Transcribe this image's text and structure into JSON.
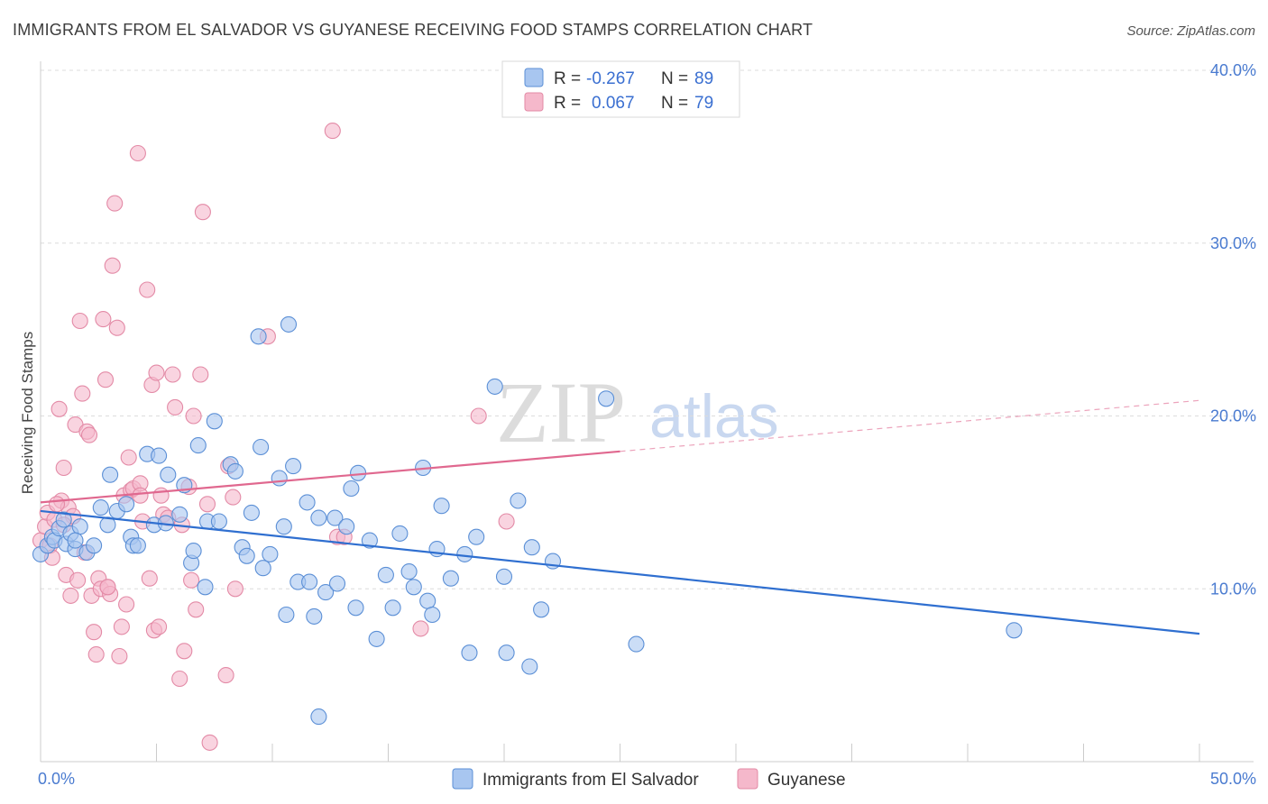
{
  "header": {
    "title": "IMMIGRANTS FROM EL SALVADOR VS GUYANESE RECEIVING FOOD STAMPS CORRELATION CHART",
    "source": "Source: ZipAtlas.com"
  },
  "watermark": {
    "zip": "ZIP",
    "atlas": "atlas"
  },
  "legend_top": {
    "rows": [
      {
        "r_label": "R =",
        "r_value": "-0.267",
        "n_label": "N =",
        "n_value": "89"
      },
      {
        "r_label": "R =",
        "r_value": "0.067",
        "n_label": "N =",
        "n_value": "79"
      }
    ]
  },
  "legend_bottom": {
    "items": [
      "Immigrants from El Salvador",
      "Guyanese"
    ]
  },
  "colors": {
    "blue_fill": "#a8c6f0",
    "blue_stroke": "#5b8fd6",
    "blue_line": "#2f6fd0",
    "pink_fill": "#f5b8cb",
    "pink_stroke": "#e38aa6",
    "pink_line": "#e0688f",
    "tick_text": "#4a7bd0",
    "grid": "#dcdcdc"
  },
  "chart_data": {
    "type": "scatter",
    "title": "IMMIGRANTS FROM EL SALVADOR VS GUYANESE RECEIVING FOOD STAMPS CORRELATION CHART",
    "xlabel": "",
    "ylabel": "Receiving Food Stamps",
    "xlim": [
      0,
      50
    ],
    "ylim": [
      0,
      40
    ],
    "x_tick_labels": [
      "0.0%",
      "50.0%"
    ],
    "y_ticks": [
      10,
      20,
      30,
      40
    ],
    "y_tick_labels": [
      "10.0%",
      "20.0%",
      "30.0%",
      "40.0%"
    ],
    "grid": true,
    "legend_position": "top-center",
    "series": [
      {
        "name": "Immigrants from El Salvador",
        "color": "#a8c6f0",
        "trend": {
          "x0": 0,
          "y0": 14.5,
          "x1": 50,
          "y1": 7.4,
          "dashed_from": null
        },
        "points": [
          [
            0.0,
            12.0
          ],
          [
            0.3,
            12.5
          ],
          [
            0.5,
            13.0
          ],
          [
            0.6,
            12.8
          ],
          [
            0.8,
            13.5
          ],
          [
            1.0,
            14.0
          ],
          [
            1.1,
            12.6
          ],
          [
            1.3,
            13.2
          ],
          [
            1.5,
            12.3
          ],
          [
            1.7,
            13.6
          ],
          [
            2.0,
            12.1
          ],
          [
            2.3,
            12.5
          ],
          [
            2.6,
            14.7
          ],
          [
            2.9,
            13.7
          ],
          [
            3.0,
            16.6
          ],
          [
            3.3,
            14.5
          ],
          [
            3.7,
            14.9
          ],
          [
            3.9,
            13.0
          ],
          [
            4.0,
            12.5
          ],
          [
            4.2,
            12.5
          ],
          [
            4.6,
            17.8
          ],
          [
            4.9,
            13.7
          ],
          [
            5.1,
            17.7
          ],
          [
            5.4,
            13.8
          ],
          [
            5.5,
            16.6
          ],
          [
            6.0,
            14.3
          ],
          [
            6.2,
            16.0
          ],
          [
            6.5,
            11.5
          ],
          [
            6.6,
            12.2
          ],
          [
            7.1,
            10.1
          ],
          [
            7.2,
            13.9
          ],
          [
            6.8,
            18.3
          ],
          [
            7.5,
            19.7
          ],
          [
            7.7,
            13.9
          ],
          [
            8.2,
            17.2
          ],
          [
            8.4,
            16.8
          ],
          [
            8.7,
            12.4
          ],
          [
            8.9,
            11.9
          ],
          [
            9.1,
            14.4
          ],
          [
            9.4,
            24.6
          ],
          [
            9.6,
            11.2
          ],
          [
            9.9,
            12.0
          ],
          [
            9.5,
            18.2
          ],
          [
            10.3,
            16.4
          ],
          [
            10.5,
            13.6
          ],
          [
            10.9,
            17.1
          ],
          [
            10.6,
            8.5
          ],
          [
            10.7,
            25.3
          ],
          [
            11.1,
            10.4
          ],
          [
            11.5,
            15.0
          ],
          [
            11.6,
            10.4
          ],
          [
            11.8,
            8.4
          ],
          [
            12.0,
            14.1
          ],
          [
            12.3,
            9.8
          ],
          [
            12.7,
            14.1
          ],
          [
            12.8,
            10.3
          ],
          [
            13.2,
            13.6
          ],
          [
            13.4,
            15.8
          ],
          [
            13.6,
            8.9
          ],
          [
            13.7,
            16.7
          ],
          [
            14.2,
            12.8
          ],
          [
            14.5,
            7.1
          ],
          [
            14.9,
            10.8
          ],
          [
            15.2,
            8.9
          ],
          [
            15.5,
            13.2
          ],
          [
            15.9,
            11.0
          ],
          [
            16.1,
            10.1
          ],
          [
            16.5,
            17.0
          ],
          [
            16.7,
            9.3
          ],
          [
            16.9,
            8.5
          ],
          [
            17.1,
            12.3
          ],
          [
            17.3,
            14.8
          ],
          [
            17.7,
            10.6
          ],
          [
            18.3,
            12.0
          ],
          [
            18.5,
            6.3
          ],
          [
            18.8,
            13.0
          ],
          [
            19.6,
            21.7
          ],
          [
            20.0,
            10.7
          ],
          [
            20.1,
            6.3
          ],
          [
            20.6,
            15.1
          ],
          [
            21.1,
            5.5
          ],
          [
            21.2,
            12.4
          ],
          [
            21.6,
            8.8
          ],
          [
            22.1,
            11.6
          ],
          [
            12.0,
            2.6
          ],
          [
            24.4,
            21.0
          ],
          [
            25.7,
            6.8
          ],
          [
            42.0,
            7.6
          ],
          [
            1.5,
            12.8
          ]
        ]
      },
      {
        "name": "Guyanese",
        "color": "#f5b8cb",
        "trend": {
          "x0": 0,
          "y0": 15.0,
          "x1": 50,
          "y1": 20.9,
          "dashed_from": 25
        },
        "points": [
          [
            0.0,
            12.8
          ],
          [
            0.2,
            13.6
          ],
          [
            0.3,
            14.4
          ],
          [
            0.4,
            12.5
          ],
          [
            0.5,
            11.8
          ],
          [
            0.6,
            14.0
          ],
          [
            0.8,
            20.4
          ],
          [
            0.9,
            15.1
          ],
          [
            1.0,
            17.0
          ],
          [
            1.2,
            14.7
          ],
          [
            1.1,
            10.8
          ],
          [
            1.4,
            14.2
          ],
          [
            1.5,
            19.5
          ],
          [
            1.6,
            10.5
          ],
          [
            1.8,
            21.3
          ],
          [
            1.7,
            25.5
          ],
          [
            1.9,
            12.1
          ],
          [
            2.0,
            19.1
          ],
          [
            2.1,
            18.9
          ],
          [
            2.2,
            9.6
          ],
          [
            2.3,
            7.5
          ],
          [
            2.4,
            6.2
          ],
          [
            2.5,
            10.6
          ],
          [
            2.6,
            10.0
          ],
          [
            2.7,
            25.6
          ],
          [
            2.8,
            22.1
          ],
          [
            2.9,
            10.1
          ],
          [
            3.0,
            9.7
          ],
          [
            3.1,
            28.7
          ],
          [
            3.2,
            32.3
          ],
          [
            3.3,
            25.1
          ],
          [
            3.4,
            6.1
          ],
          [
            3.5,
            7.8
          ],
          [
            3.6,
            15.4
          ],
          [
            3.7,
            9.1
          ],
          [
            3.8,
            17.6
          ],
          [
            3.9,
            15.7
          ],
          [
            4.0,
            15.8
          ],
          [
            4.2,
            35.2
          ],
          [
            4.3,
            16.1
          ],
          [
            4.4,
            13.9
          ],
          [
            4.6,
            27.3
          ],
          [
            4.7,
            10.6
          ],
          [
            4.8,
            21.8
          ],
          [
            4.9,
            7.6
          ],
          [
            5.0,
            22.5
          ],
          [
            5.1,
            7.8
          ],
          [
            5.2,
            15.4
          ],
          [
            5.3,
            14.3
          ],
          [
            5.5,
            14.1
          ],
          [
            5.7,
            22.4
          ],
          [
            5.8,
            20.5
          ],
          [
            6.0,
            4.8
          ],
          [
            6.1,
            13.7
          ],
          [
            6.2,
            6.4
          ],
          [
            6.4,
            15.9
          ],
          [
            6.5,
            10.5
          ],
          [
            6.6,
            20.0
          ],
          [
            6.7,
            8.8
          ],
          [
            6.9,
            22.4
          ],
          [
            7.0,
            31.8
          ],
          [
            7.2,
            14.9
          ],
          [
            7.3,
            1.1
          ],
          [
            8.0,
            5.0
          ],
          [
            8.1,
            17.1
          ],
          [
            8.3,
            15.3
          ],
          [
            8.4,
            10.0
          ],
          [
            9.8,
            24.6
          ],
          [
            12.6,
            36.5
          ],
          [
            12.8,
            13.0
          ],
          [
            13.1,
            13.0
          ],
          [
            16.4,
            7.7
          ],
          [
            18.9,
            20.0
          ],
          [
            20.1,
            13.9
          ],
          [
            1.3,
            9.6
          ],
          [
            2.9,
            10.1
          ],
          [
            0.7,
            14.9
          ],
          [
            1.0,
            13.7
          ],
          [
            4.3,
            15.4
          ]
        ]
      }
    ]
  }
}
